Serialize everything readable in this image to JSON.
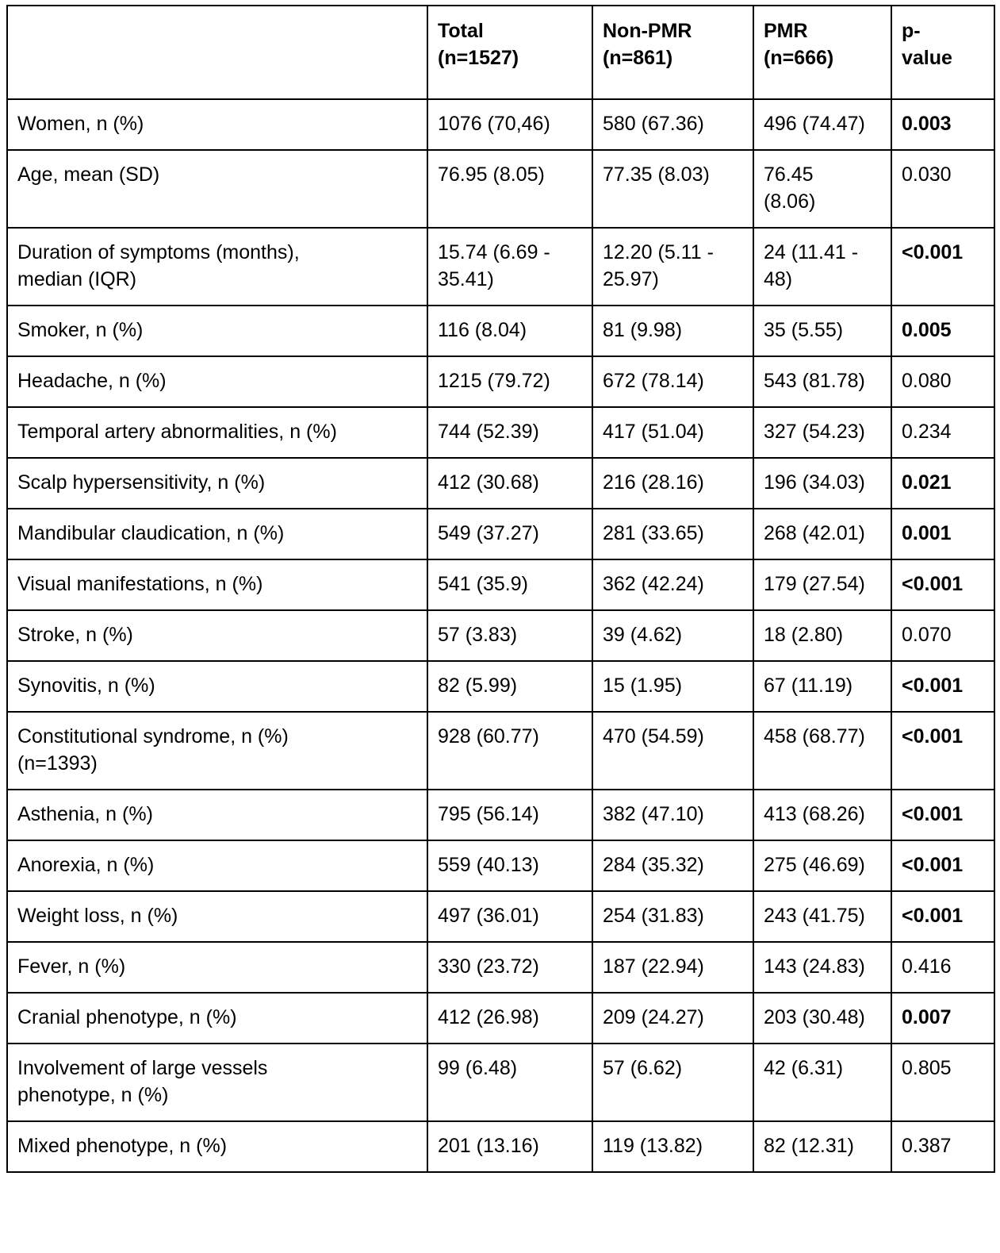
{
  "colors": {
    "border": "#000000",
    "text": "#000000",
    "background": "#ffffff"
  },
  "table": {
    "columns": [
      {
        "lines": [
          "",
          ""
        ]
      },
      {
        "lines": [
          "Total",
          "(n=1527)"
        ]
      },
      {
        "lines": [
          "Non-PMR",
          "(n=861)"
        ]
      },
      {
        "lines": [
          "PMR",
          "(n=666)"
        ]
      },
      {
        "lines": [
          "p-",
          "value"
        ]
      }
    ],
    "rows": [
      {
        "label": "Women, n (%)",
        "total": "1076 (70,46)",
        "non_pmr": "580 (67.36)",
        "pmr": "496 (74.47)",
        "p_value": "0.003",
        "p_bold": true
      },
      {
        "label": "Age, mean (SD)",
        "total": "76.95 (8.05)",
        "non_pmr": "77.35 (8.03)",
        "pmr": "76.45\n(8.06)",
        "p_value": "0.030",
        "p_bold": false
      },
      {
        "label": "Duration of symptoms (months),\nmedian (IQR)",
        "total": "15.74 (6.69 -\n35.41)",
        "non_pmr": "12.20 (5.11 -\n25.97)",
        "pmr": "24 (11.41 -\n48)",
        "p_value": "<0.001",
        "p_bold": true
      },
      {
        "label": "Smoker, n (%)",
        "total": "116 (8.04)",
        "non_pmr": "81 (9.98)",
        "pmr": "35 (5.55)",
        "p_value": "0.005",
        "p_bold": true
      },
      {
        "label": "Headache, n (%)",
        "total": "1215 (79.72)",
        "non_pmr": "672 (78.14)",
        "pmr": "543 (81.78)",
        "p_value": "0.080",
        "p_bold": false
      },
      {
        "label": "Temporal artery abnormalities, n (%)",
        "total": "744 (52.39)",
        "non_pmr": "417 (51.04)",
        "pmr": "327 (54.23)",
        "p_value": "0.234",
        "p_bold": false
      },
      {
        "label": "Scalp hypersensitivity, n (%)",
        "total": "412 (30.68)",
        "non_pmr": "216 (28.16)",
        "pmr": "196 (34.03)",
        "p_value": "0.021",
        "p_bold": true
      },
      {
        "label": "Mandibular claudication, n (%)",
        "total": "549 (37.27)",
        "non_pmr": "281 (33.65)",
        "pmr": "268 (42.01)",
        "p_value": "0.001",
        "p_bold": true
      },
      {
        "label": "Visual manifestations, n (%)",
        "total": "541 (35.9)",
        "non_pmr": "362 (42.24)",
        "pmr": "179 (27.54)",
        "p_value": "<0.001",
        "p_bold": true
      },
      {
        "label": "Stroke, n (%)",
        "total": "57 (3.83)",
        "non_pmr": "39 (4.62)",
        "pmr": "18 (2.80)",
        "p_value": "0.070",
        "p_bold": false
      },
      {
        "label": "Synovitis, n (%)",
        "total": "82 (5.99)",
        "non_pmr": "15 (1.95)",
        "pmr": "67 (11.19)",
        "p_value": "<0.001",
        "p_bold": true
      },
      {
        "label": "Constitutional syndrome, n (%)\n(n=1393)",
        "total": "928 (60.77)",
        "non_pmr": "470 (54.59)",
        "pmr": "458 (68.77)",
        "p_value": "<0.001",
        "p_bold": true
      },
      {
        "label": "Asthenia, n (%)",
        "total": "795 (56.14)",
        "non_pmr": "382 (47.10)",
        "pmr": "413 (68.26)",
        "p_value": "<0.001",
        "p_bold": true
      },
      {
        "label": "Anorexia, n (%)",
        "total": "559 (40.13)",
        "non_pmr": "284 (35.32)",
        "pmr": "275 (46.69)",
        "p_value": "<0.001",
        "p_bold": true
      },
      {
        "label": "Weight loss, n (%)",
        "total": "497 (36.01)",
        "non_pmr": "254 (31.83)",
        "pmr": "243 (41.75)",
        "p_value": "<0.001",
        "p_bold": true
      },
      {
        "label": "Fever, n (%)",
        "total": "330 (23.72)",
        "non_pmr": "187 (22.94)",
        "pmr": "143 (24.83)",
        "p_value": "0.416",
        "p_bold": false
      },
      {
        "label": "Cranial phenotype, n (%)",
        "total": "412 (26.98)",
        "non_pmr": "209 (24.27)",
        "pmr": "203 (30.48)",
        "p_value": "0.007",
        "p_bold": true
      },
      {
        "label": "Involvement of large vessels\nphenotype, n (%)",
        "total": "99 (6.48)",
        "non_pmr": "57 (6.62)",
        "pmr": "42 (6.31)",
        "p_value": "0.805",
        "p_bold": false
      },
      {
        "label": "Mixed phenotype, n (%)",
        "total": "201 (13.16)",
        "non_pmr": "119 (13.82)",
        "pmr": "82 (12.31)",
        "p_value": "0.387",
        "p_bold": false
      }
    ]
  }
}
